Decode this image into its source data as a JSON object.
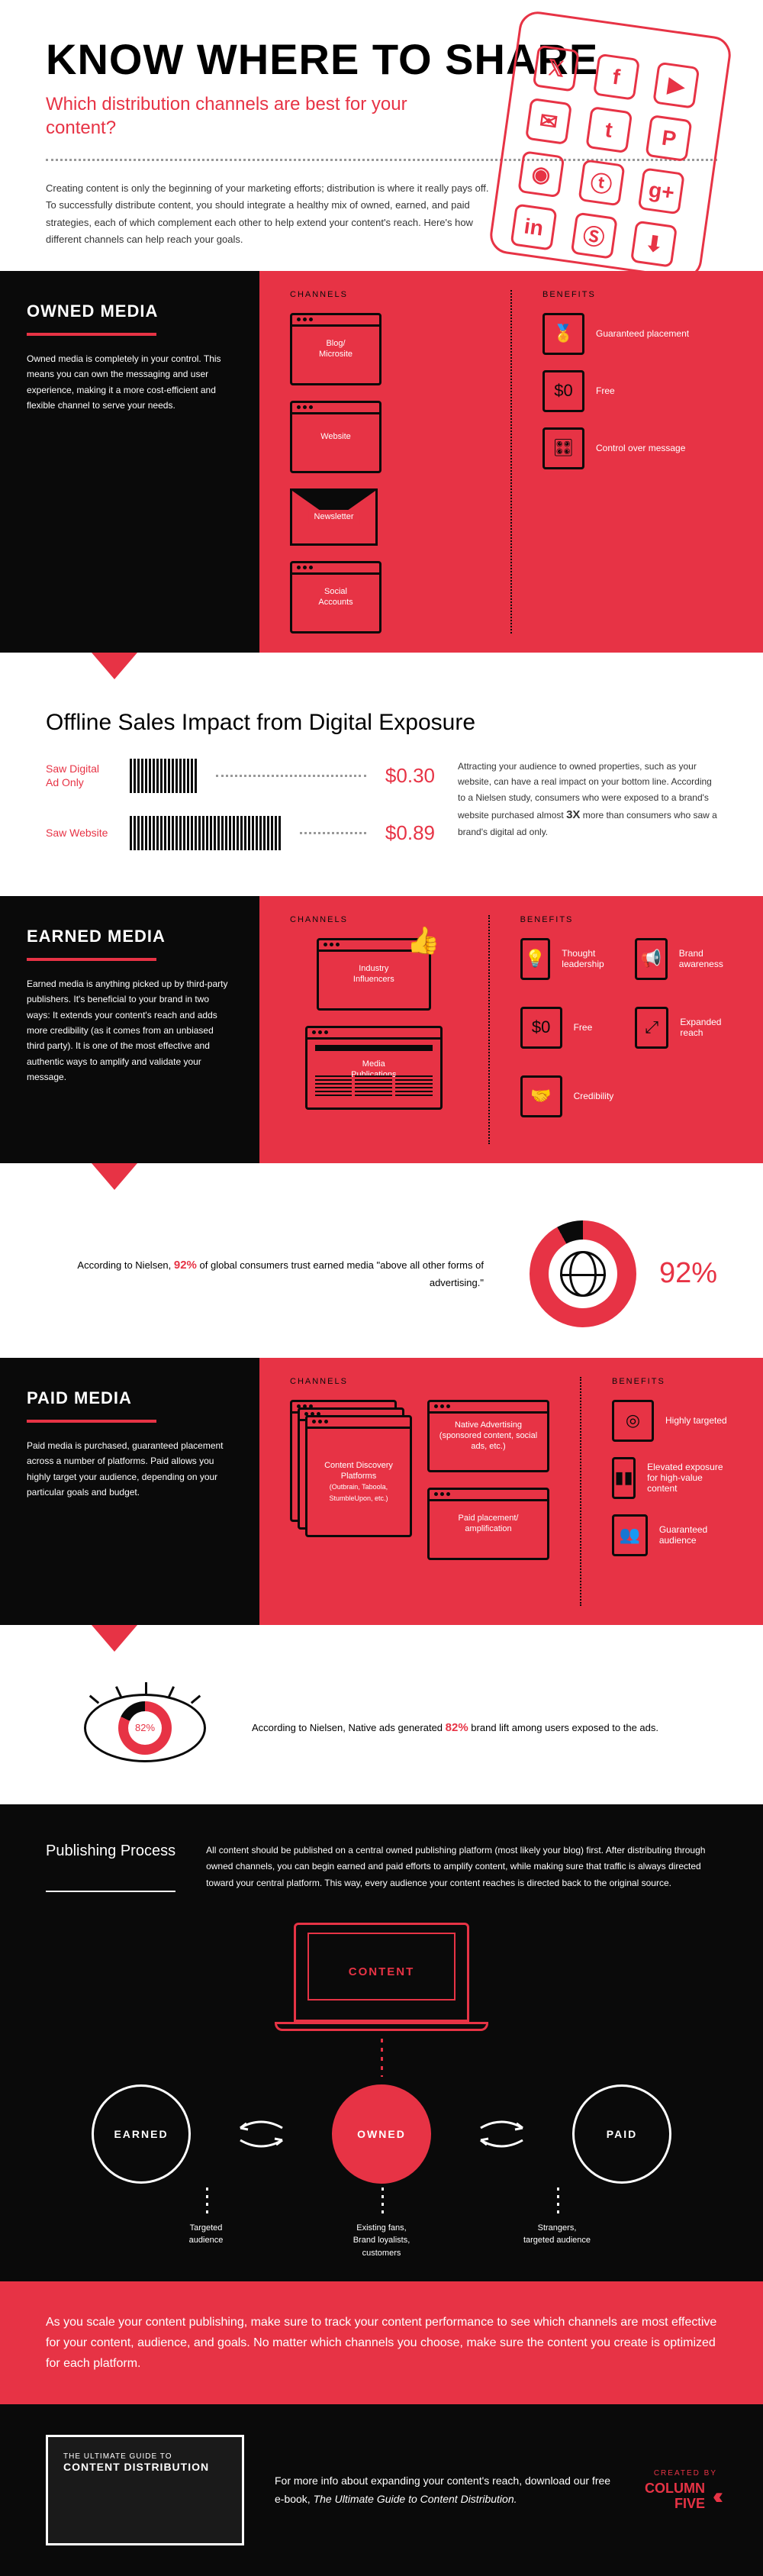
{
  "header": {
    "title": "KNOW WHERE TO SHARE",
    "subtitle": "Which distribution channels are best for your content?",
    "intro": "Creating content is only the beginning of your marketing efforts; distribution is where it really pays off. To successfully distribute content, you should integrate a healthy mix of owned, earned, and paid strategies, each of which complement each other to help extend your content's reach. Here's how different channels can help reach your goals."
  },
  "phone_icons": [
    "𝕏",
    "f",
    "▶",
    "✉",
    "t",
    "P",
    "◉",
    "ⓣ",
    "g+",
    "in",
    "Ⓢ",
    "⬇"
  ],
  "labels": {
    "channels": "CHANNELS",
    "benefits": "BENEFITS"
  },
  "owned": {
    "title": "OWNED MEDIA",
    "desc": "Owned media is completely in your control. This means you can own the messaging and user experience, making it a more cost-efficient and flexible channel to serve your needs.",
    "channels": [
      "Blog/\nMicrosite",
      "Website",
      "Newsletter",
      "Social\nAccounts"
    ],
    "benefits": [
      {
        "icon": "🏅",
        "text": "Guaranteed placement"
      },
      {
        "icon": "$0",
        "text": "Free"
      },
      {
        "icon": "🎛",
        "text": "Control over message"
      }
    ]
  },
  "offline": {
    "title": "Offline Sales Impact from Digital Exposure",
    "rows": [
      {
        "label": "Saw Digital Ad Only",
        "bars": 18,
        "value": "$0.30"
      },
      {
        "label": "Saw Website",
        "bars": 40,
        "value": "$0.89"
      }
    ],
    "text_pre": "Attracting your audience to owned properties, such as your website, can have a real impact on your bottom line. According to a Nielsen study, consumers who were exposed to a brand's website purchased almost ",
    "text_bold": "3X",
    "text_post": " more than consumers who saw a brand's digital ad only."
  },
  "earned": {
    "title": "EARNED MEDIA",
    "desc": "Earned media is anything picked up by third-party publishers. It's beneficial to your brand in two ways: It extends your content's reach and adds more credibility (as it comes from an unbiased third party). It is one of the most effective and authentic ways to amplify and validate your message.",
    "channels": [
      "Industry\nInfluencers",
      "Media\nPublications"
    ],
    "benefits": [
      {
        "icon": "💡",
        "text": "Thought leadership"
      },
      {
        "icon": "📢",
        "text": "Brand awareness"
      },
      {
        "icon": "$0",
        "text": "Free"
      },
      {
        "icon": "⤢",
        "text": "Expanded reach"
      },
      {
        "icon": "🤝",
        "text": "Credibility"
      }
    ],
    "stat_pre": "According to Nielsen, ",
    "stat_pct": "92%",
    "stat_post": " of global consumers trust earned media \"above all other forms of advertising.\"",
    "donut_pct": 92,
    "donut_label": "92%"
  },
  "paid": {
    "title": "PAID MEDIA",
    "desc": "Paid media is purchased, guaranteed placement across a number of platforms. Paid allows you highly target your audience, depending on your particular goals and budget.",
    "channel1": "Content Discovery Platforms",
    "channel1_sub": "(Outbrain, Taboola, StumbleUpon, etc.)",
    "channel2": "Native Advertising (sponsored content, social ads, etc.)",
    "channel3": "Paid placement/\namplification",
    "benefits": [
      {
        "icon": "◎",
        "text": "Highly targeted"
      },
      {
        "icon": "▮▮",
        "text": "Elevated exposure for high-value content"
      },
      {
        "icon": "👥",
        "text": "Guaranteed audience"
      }
    ],
    "stat_pre": "According to Nielsen, Native ads generated ",
    "stat_pct": "82%",
    "stat_post": " brand lift among users exposed to the ads.",
    "eye_pct": 82,
    "eye_label": "82%"
  },
  "publishing": {
    "title": "Publishing Process",
    "text": "All content should be published on a central owned publishing platform (most likely your blog) first. After distributing through owned channels, you can begin earned and paid efforts to amplify content, while making sure that traffic is always directed toward your central platform. This way, every audience your content reaches is directed back to the original source.",
    "content_label": "CONTENT",
    "nodes": [
      "EARNED",
      "OWNED",
      "PAID"
    ],
    "subs": [
      "Targeted\naudience",
      "Existing fans,\nBrand loyalists,\ncustomers",
      "Strangers,\ntargeted audience"
    ]
  },
  "callout": "As you scale your content publishing, make sure to track your content performance to see which channels are most effective for your content, audience, and goals. No matter which channels you choose, make sure the content you create is optimized for each platform.",
  "footer": {
    "ebook_small": "THE ULTIMATE GUIDE TO",
    "ebook_big": "CONTENT DISTRIBUTION",
    "text_pre": "For more info about expanding your content's reach, download our free e-book, ",
    "text_em": "The Ultimate Guide to Content Distribution.",
    "created_by": "CREATED BY",
    "brand": "COLUMN\nFIVE"
  },
  "colors": {
    "red": "#e73345",
    "black": "#0a0a0a"
  }
}
